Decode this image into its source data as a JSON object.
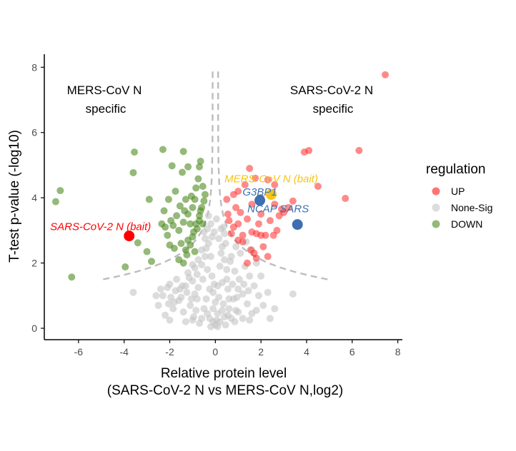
{
  "chart_data": {
    "type": "scatter",
    "title": "",
    "xlabel_line1": "Relative protein level",
    "xlabel_line2": "(SARS-CoV-2 N vs MERS-CoV N,log2)",
    "ylabel": "T-test p-value (-log10)",
    "xlim": [
      -7.5,
      8.2
    ],
    "ylim": [
      -0.35,
      8.4
    ],
    "xticks": [
      -6,
      -4,
      -2,
      0,
      2,
      4,
      6,
      8
    ],
    "xtick_labels": [
      "-6",
      "-4",
      "-2",
      "0",
      "2",
      "4",
      "6",
      "8"
    ],
    "yticks": [
      0,
      2,
      4,
      6,
      8
    ],
    "ytick_labels": [
      "0",
      "2",
      "4",
      "6",
      "8"
    ],
    "grid": false,
    "legend": {
      "title": "regulation",
      "placement": "right",
      "entries": [
        {
          "label": "UP",
          "color": "#f8766d"
        },
        {
          "label": "None-Sig",
          "color": "#d0d0d0"
        },
        {
          "label": "DOWN",
          "color": "#6b9b3a"
        }
      ]
    },
    "region_labels": {
      "left_line1": "MERS-CoV N",
      "left_line2": "specific",
      "right_line1": "SARS-CoV-2 N",
      "right_line2": "specific"
    },
    "colors": {
      "up": "#ff2a2a",
      "none": "#c4c4c4",
      "down": "#4d8a1f",
      "threshold": "#bdbdbd",
      "highlight_red": "#ff0000",
      "highlight_blue": "#3e6fb0",
      "highlight_yellow": "#f5c518"
    },
    "series": [
      {
        "name": "UP",
        "points": [
          [
            7.45,
            7.77
          ],
          [
            6.3,
            5.45
          ],
          [
            5.7,
            3.98
          ],
          [
            4.5,
            4.35
          ],
          [
            4.1,
            5.45
          ],
          [
            3.9,
            5.4
          ],
          [
            3.4,
            3.9
          ],
          [
            3.2,
            3.7
          ],
          [
            3.0,
            3.55
          ],
          [
            2.8,
            3.45
          ],
          [
            2.55,
            2.85
          ],
          [
            2.2,
            2.85
          ],
          [
            2.0,
            2.85
          ],
          [
            1.8,
            2.9
          ],
          [
            1.6,
            2.95
          ],
          [
            1.2,
            2.85
          ],
          [
            1.0,
            3.2
          ],
          [
            0.8,
            3.1
          ],
          [
            0.55,
            3.5
          ],
          [
            0.5,
            3.95
          ],
          [
            1.5,
            4.9
          ],
          [
            1.75,
            4.6
          ],
          [
            2.3,
            4.55
          ],
          [
            2.6,
            4.4
          ],
          [
            2.0,
            4.0
          ],
          [
            1.3,
            4.4
          ],
          [
            1.0,
            4.2
          ],
          [
            0.8,
            4.1
          ],
          [
            1.1,
            3.55
          ],
          [
            1.4,
            3.35
          ],
          [
            1.6,
            3.8
          ],
          [
            1.9,
            3.2
          ],
          [
            2.4,
            3.3
          ],
          [
            2.7,
            3.0
          ],
          [
            2.9,
            3.65
          ],
          [
            1.2,
            2.65
          ],
          [
            1.55,
            2.4
          ],
          [
            1.8,
            2.15
          ],
          [
            2.1,
            2.5
          ],
          [
            1.4,
            2.0
          ],
          [
            1.7,
            2.3
          ],
          [
            2.3,
            2.2
          ],
          [
            1.0,
            2.7
          ],
          [
            0.7,
            2.9
          ],
          [
            0.9,
            3.7
          ],
          [
            0.6,
            3.3
          ],
          [
            2.0,
            3.5
          ],
          [
            2.6,
            3.8
          ]
        ]
      },
      {
        "name": "DOWN",
        "points": [
          [
            -6.3,
            1.57
          ],
          [
            -6.8,
            4.22
          ],
          [
            -7.0,
            3.88
          ],
          [
            -3.95,
            1.88
          ],
          [
            -3.4,
            2.62
          ],
          [
            -3.0,
            2.35
          ],
          [
            -2.8,
            2.05
          ],
          [
            -3.6,
            4.77
          ],
          [
            -3.55,
            5.4
          ],
          [
            -2.9,
            3.95
          ],
          [
            -2.3,
            5.48
          ],
          [
            -1.4,
            5.42
          ],
          [
            -1.2,
            4.95
          ],
          [
            -1.45,
            4.78
          ],
          [
            -0.7,
            4.95
          ],
          [
            -0.65,
            5.12
          ],
          [
            -0.75,
            4.58
          ],
          [
            -1.9,
            4.98
          ],
          [
            -2.25,
            3.6
          ],
          [
            -2.35,
            3.2
          ],
          [
            -2.1,
            2.85
          ],
          [
            -2.0,
            2.55
          ],
          [
            -1.8,
            2.45
          ],
          [
            -1.6,
            2.1
          ],
          [
            -1.4,
            2.0
          ],
          [
            -1.3,
            2.4
          ],
          [
            -1.2,
            2.7
          ],
          [
            -1.0,
            2.8
          ],
          [
            -0.85,
            3.2
          ],
          [
            -0.7,
            3.45
          ],
          [
            -0.6,
            3.7
          ],
          [
            -0.5,
            3.9
          ],
          [
            -0.45,
            4.1
          ],
          [
            -0.55,
            4.35
          ],
          [
            -0.85,
            4.3
          ],
          [
            -1.05,
            4.05
          ],
          [
            -1.3,
            3.95
          ],
          [
            -1.55,
            3.75
          ],
          [
            -1.7,
            3.45
          ],
          [
            -1.85,
            3.15
          ],
          [
            -1.6,
            3.0
          ],
          [
            -1.4,
            3.25
          ],
          [
            -1.2,
            3.5
          ],
          [
            -1.0,
            3.7
          ],
          [
            -0.9,
            3.95
          ],
          [
            -1.1,
            3.2
          ],
          [
            -0.95,
            2.95
          ],
          [
            -0.8,
            3.05
          ],
          [
            -0.7,
            3.3
          ],
          [
            -1.5,
            2.6
          ],
          [
            -1.25,
            2.25
          ],
          [
            -1.1,
            2.55
          ],
          [
            -0.9,
            2.35
          ],
          [
            -2.05,
            3.95
          ],
          [
            -1.75,
            4.2
          ],
          [
            -1.35,
            3.6
          ],
          [
            -0.65,
            3.6
          ],
          [
            -0.55,
            3.2
          ],
          [
            -1.95,
            3.3
          ],
          [
            -2.2,
            3.1
          ]
        ]
      },
      {
        "name": "None-Sig",
        "points": [
          [
            -3.6,
            1.1
          ],
          [
            -2.3,
            1.0
          ],
          [
            -2.1,
            1.25
          ],
          [
            -1.95,
            0.95
          ],
          [
            -1.7,
            1.5
          ],
          [
            -1.45,
            1.3
          ],
          [
            -1.2,
            1.7
          ],
          [
            -1.0,
            1.45
          ],
          [
            -0.9,
            1.85
          ],
          [
            -0.75,
            2.1
          ],
          [
            -0.6,
            2.4
          ],
          [
            -0.45,
            2.75
          ],
          [
            -0.35,
            3.05
          ],
          [
            -0.3,
            3.45
          ],
          [
            -0.2,
            2.2
          ],
          [
            -0.15,
            1.6
          ],
          [
            -0.1,
            1.1
          ],
          [
            0.0,
            0.8
          ],
          [
            0.1,
            0.45
          ],
          [
            0.2,
            0.2
          ],
          [
            -0.25,
            0.3
          ],
          [
            -0.5,
            0.6
          ],
          [
            -0.8,
            0.9
          ],
          [
            -1.1,
            0.7
          ],
          [
            -1.4,
            0.5
          ],
          [
            -1.6,
            0.85
          ],
          [
            -1.85,
            0.6
          ],
          [
            -2.2,
            0.4
          ],
          [
            -2.5,
            0.7
          ],
          [
            -2.0,
            0.25
          ],
          [
            -1.3,
            0.2
          ],
          [
            -0.95,
            0.35
          ],
          [
            -0.7,
            0.15
          ],
          [
            0.4,
            0.35
          ],
          [
            0.6,
            0.6
          ],
          [
            0.8,
            0.9
          ],
          [
            1.0,
            1.2
          ],
          [
            1.2,
            1.05
          ],
          [
            1.4,
            0.75
          ],
          [
            1.6,
            0.45
          ],
          [
            0.3,
            1.4
          ],
          [
            0.5,
            1.8
          ],
          [
            0.7,
            2.2
          ],
          [
            0.9,
            2.5
          ],
          [
            1.1,
            2.3
          ],
          [
            1.3,
            1.9
          ],
          [
            1.5,
            1.6
          ],
          [
            1.7,
            1.3
          ],
          [
            1.9,
            1.0
          ],
          [
            2.1,
            0.7
          ],
          [
            2.3,
            1.1
          ],
          [
            2.0,
            1.6
          ],
          [
            1.8,
            2.0
          ],
          [
            1.6,
            2.4
          ],
          [
            1.35,
            2.65
          ],
          [
            0.4,
            2.9
          ],
          [
            0.3,
            2.5
          ],
          [
            0.2,
            1.9
          ],
          [
            0.1,
            1.3
          ],
          [
            0.55,
            1.2
          ],
          [
            3.4,
            1.05
          ],
          [
            2.6,
            0.6
          ],
          [
            2.4,
            0.3
          ],
          [
            1.2,
            0.3
          ],
          [
            0.9,
            0.55
          ],
          [
            0.6,
            0.9
          ],
          [
            0.35,
            0.75
          ],
          [
            0.15,
            0.95
          ],
          [
            -0.05,
            1.35
          ],
          [
            -0.35,
            1.8
          ],
          [
            -0.55,
            1.5
          ],
          [
            -0.75,
            1.25
          ],
          [
            -0.9,
            1.05
          ],
          [
            -1.05,
            0.9
          ],
          [
            -1.25,
            1.1
          ],
          [
            -1.5,
            0.95
          ],
          [
            -1.75,
            1.15
          ],
          [
            -2.0,
            1.35
          ],
          [
            -2.4,
            1.2
          ],
          [
            -2.6,
            1.0
          ],
          [
            -0.4,
            0.9
          ],
          [
            -0.25,
            1.2
          ],
          [
            -0.1,
            0.6
          ],
          [
            0.05,
            0.25
          ],
          [
            -0.6,
            0.3
          ],
          [
            -0.85,
            0.55
          ],
          [
            -1.0,
            0.25
          ],
          [
            0.45,
            0.1
          ],
          [
            0.7,
            0.3
          ],
          [
            1.0,
            0.5
          ],
          [
            0.25,
            2.3
          ],
          [
            0.45,
            2.6
          ],
          [
            0.65,
            2.05
          ],
          [
            0.85,
            1.75
          ],
          [
            1.05,
            1.5
          ],
          [
            1.25,
            1.35
          ],
          [
            1.45,
            1.15
          ],
          [
            0.5,
            1.5
          ],
          [
            0.75,
            1.35
          ],
          [
            0.95,
            0.95
          ],
          [
            -0.3,
            2.6
          ],
          [
            -0.45,
            2.2
          ],
          [
            -0.6,
            1.95
          ],
          [
            -0.8,
            1.65
          ],
          [
            -1.0,
            1.95
          ],
          [
            -1.15,
            1.55
          ],
          [
            -1.3,
            1.3
          ],
          [
            -1.55,
            1.2
          ],
          [
            -1.8,
            0.8
          ],
          [
            -2.05,
            0.75
          ],
          [
            -0.2,
            0.05
          ],
          [
            0.0,
            0.1
          ],
          [
            0.1,
            0.05
          ],
          [
            -0.1,
            0.2
          ],
          [
            -0.35,
            0.45
          ],
          [
            0.3,
            0.55
          ],
          [
            0.55,
            0.4
          ],
          [
            0.85,
            0.2
          ],
          [
            1.5,
            0.25
          ],
          [
            1.8,
            0.55
          ],
          [
            -0.15,
            2.8
          ],
          [
            -0.2,
            3.2
          ],
          [
            0.15,
            2.75
          ],
          [
            0.35,
            3.1
          ],
          [
            0.05,
            3.35
          ],
          [
            -0.05,
            2.95
          ],
          [
            0.25,
            3.05
          ],
          [
            0.4,
            2.1
          ],
          [
            -0.4,
            2.45
          ],
          [
            -0.5,
            2.95
          ]
        ]
      }
    ],
    "highlights": [
      {
        "label": "SARS-CoV-2 N (bait)",
        "x": -3.78,
        "y": 2.83,
        "color_key": "highlight_red",
        "label_anchor": "right"
      },
      {
        "label": "MERS-CoV N (bait)",
        "x": 2.45,
        "y": 4.1,
        "color_key": "highlight_yellow",
        "label_anchor": "center"
      },
      {
        "label": "G3BP1",
        "x": 1.95,
        "y": 3.92,
        "color_key": "highlight_blue",
        "label_anchor": "center"
      },
      {
        "label": "NCAP SARS",
        "x": 3.6,
        "y": 3.18,
        "color_key": "highlight_blue",
        "label_anchor": "center"
      }
    ]
  }
}
